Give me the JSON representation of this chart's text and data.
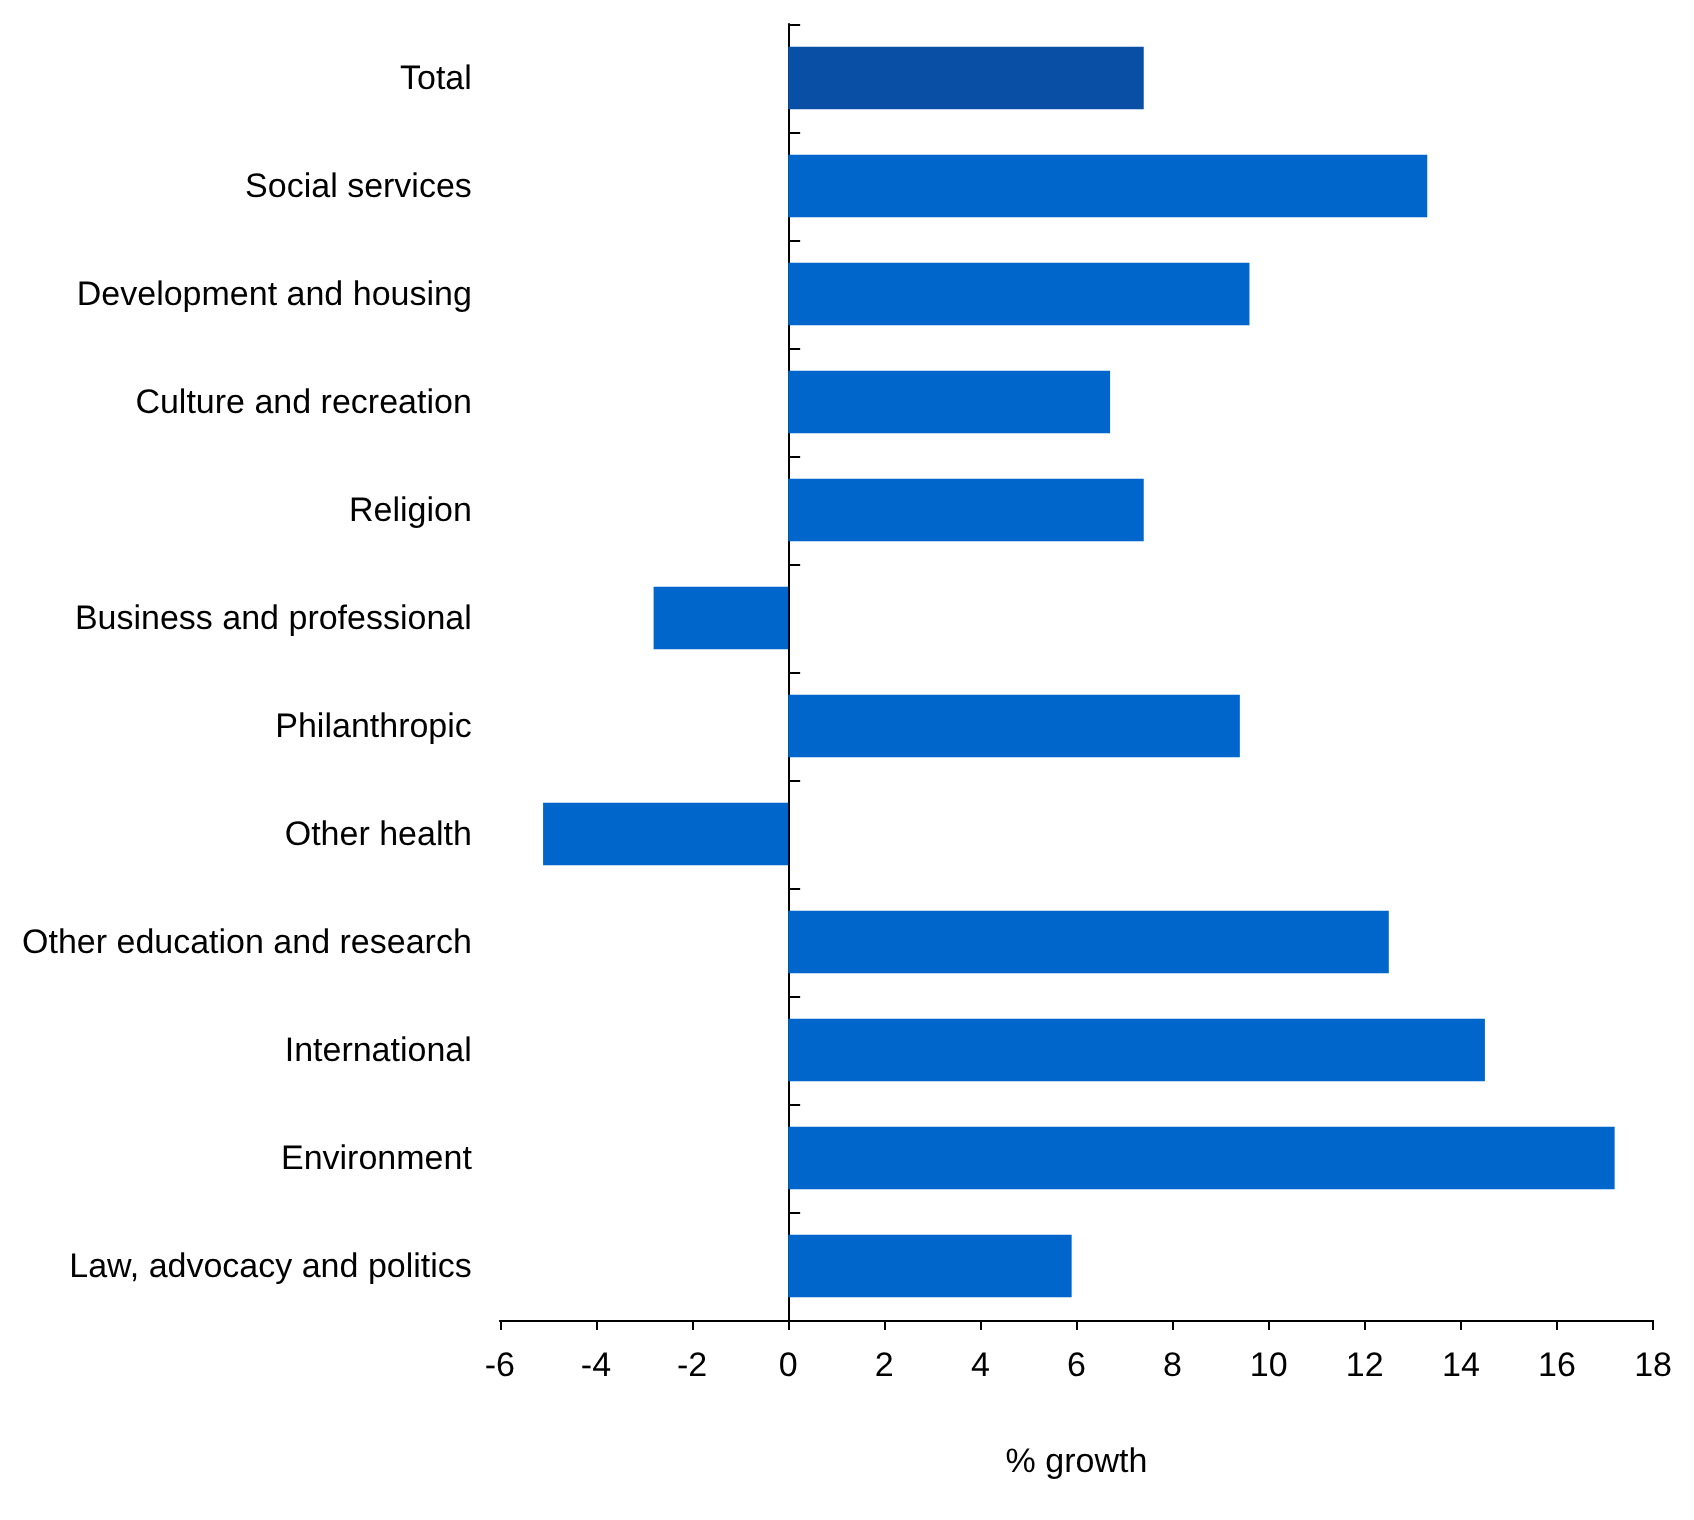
{
  "chart_data": {
    "type": "bar",
    "orientation": "horizontal",
    "xlabel": "% growth",
    "categories": [
      "Total",
      "Social services",
      "Development and housing",
      "Culture and recreation",
      "Religion",
      "Business and professional",
      "Philanthropic",
      "Other health",
      "Other education and research",
      "International",
      "Environment",
      "Law, advocacy and politics"
    ],
    "values": [
      7.4,
      13.3,
      9.6,
      6.7,
      7.4,
      -2.8,
      9.4,
      -5.1,
      12.5,
      14.5,
      17.2,
      5.9
    ],
    "colors": [
      "#0a4fa6",
      "#0066cc",
      "#0066cc",
      "#0066cc",
      "#0066cc",
      "#0066cc",
      "#0066cc",
      "#0066cc",
      "#0066cc",
      "#0066cc",
      "#0066cc",
      "#0066cc"
    ],
    "xlim": [
      -6,
      18
    ],
    "xticks": [
      -6,
      -4,
      -2,
      0,
      2,
      4,
      6,
      8,
      10,
      12,
      14,
      16,
      18
    ]
  }
}
